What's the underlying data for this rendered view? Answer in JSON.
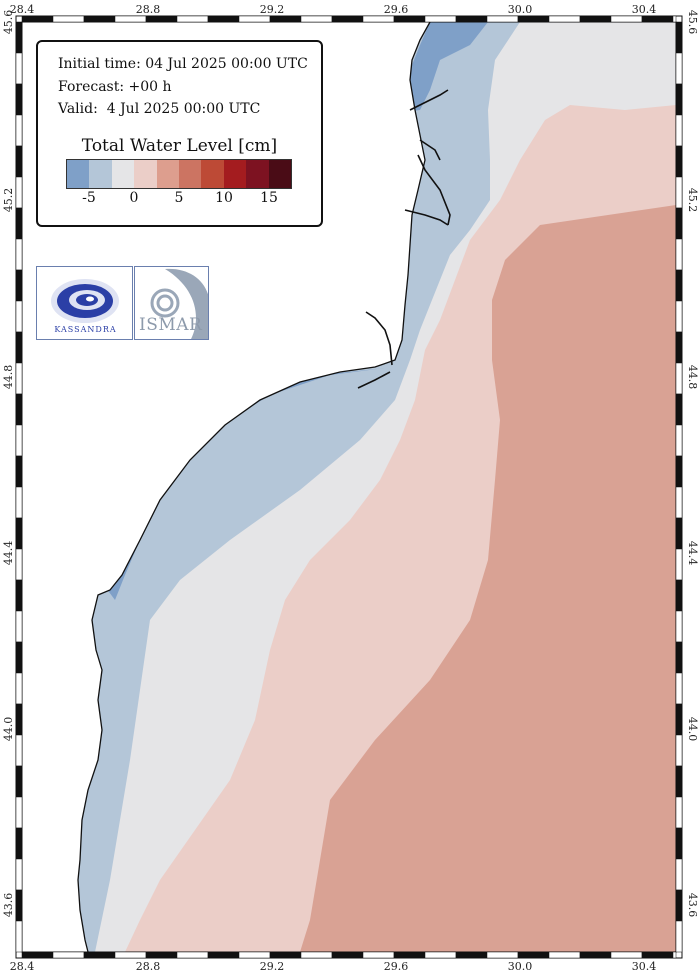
{
  "info": {
    "initial_time": "Initial time: 04 Jul 2025 00:00 UTC",
    "forecast": "Forecast: +00 h",
    "valid": "Valid:  4 Jul 2025 00:00 UTC"
  },
  "legend": {
    "title": "Total Water Level [cm]",
    "tick_labels": [
      "-5",
      "0",
      "5",
      "10",
      "15"
    ],
    "colors": [
      "#7fa0c8",
      "#b4c6d8",
      "#e5e5e7",
      "#ebcec8",
      "#dd9e8e",
      "#cc7462",
      "#bd4a36",
      "#a41c1f",
      "#7d1221",
      "#4a0c16"
    ]
  },
  "axes": {
    "lon_ticks": [
      "28.4",
      "28.8",
      "29.2",
      "29.6",
      "30.0",
      "30.4"
    ],
    "lat_ticks": [
      "45.6",
      "45.2",
      "44.8",
      "44.4",
      "44.0",
      "43.6"
    ]
  },
  "logos": {
    "kassandra": "KASSANDRA",
    "ismar": "ISMAR"
  },
  "colors": {
    "land": "#ffffff",
    "coastline": "#111111",
    "level_neg_strong": "#7fa0c8",
    "level_neg": "#b4c6d8",
    "level_zero": "#e5e5e7",
    "level_pos_low": "#ebcec8",
    "level_pos": "#d9a294"
  }
}
